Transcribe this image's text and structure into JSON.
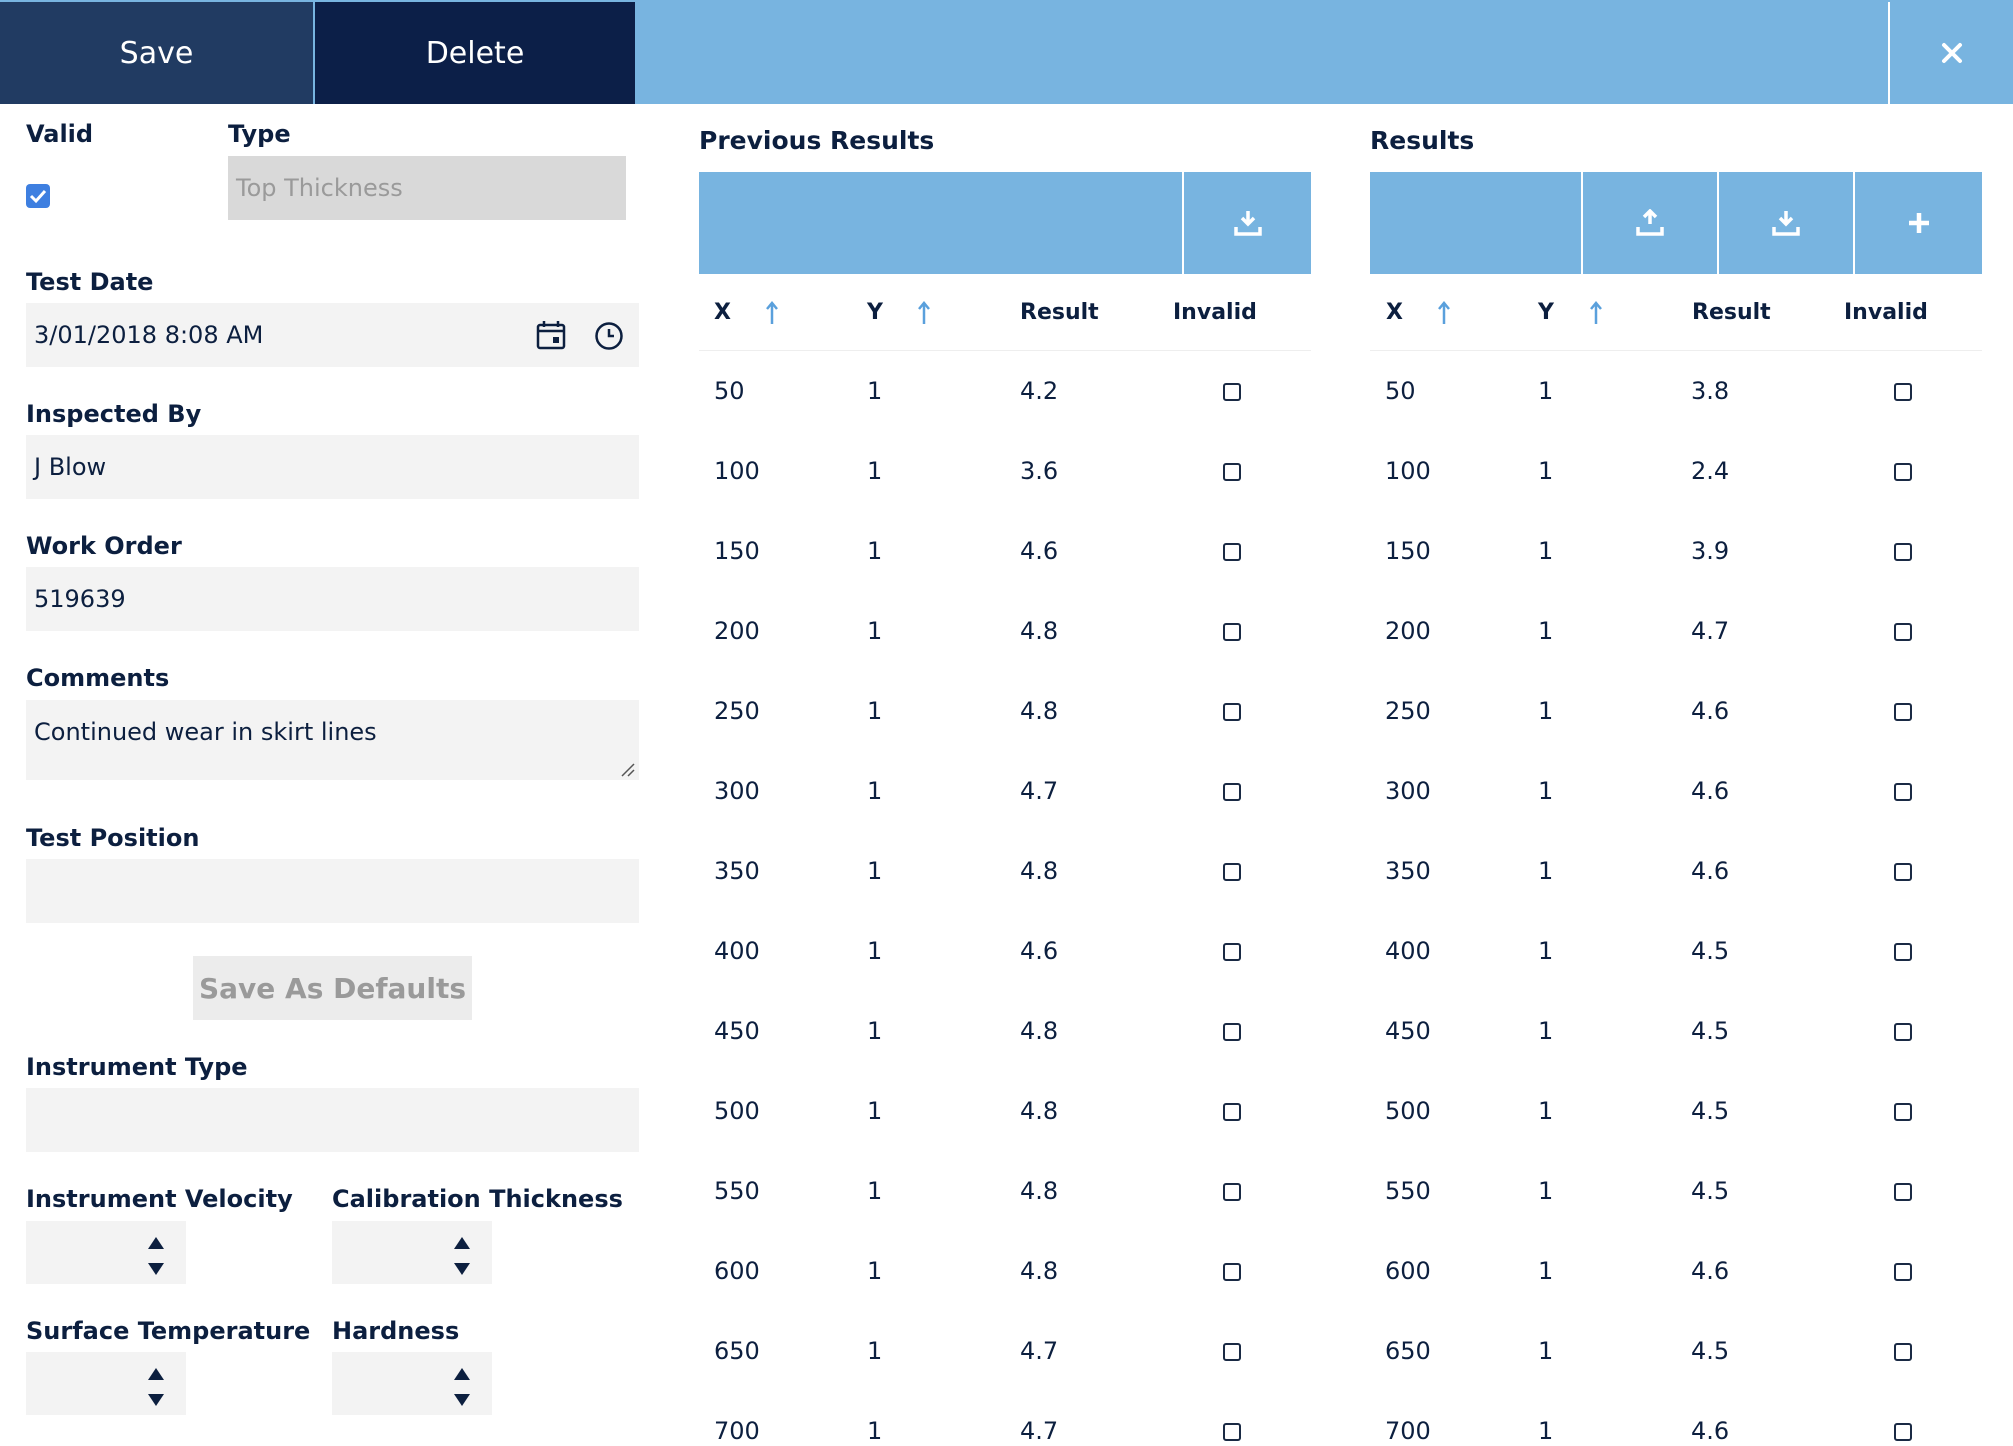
{
  "toolbar": {
    "save_label": "Save",
    "delete_label": "Delete",
    "close_icon": "close-icon"
  },
  "form": {
    "valid_label": "Valid",
    "valid_checked": true,
    "type_label": "Type",
    "type_value": "Top Thickness",
    "test_date_label": "Test Date",
    "test_date_value": "3/01/2018 8:08 AM",
    "inspected_by_label": "Inspected By",
    "inspected_by_value": "J Blow",
    "work_order_label": "Work Order",
    "work_order_value": "519639",
    "comments_label": "Comments",
    "comments_value": "Continued wear in skirt lines",
    "test_position_label": "Test Position",
    "test_position_value": "",
    "save_defaults_label": "Save As Defaults",
    "instrument_type_label": "Instrument Type",
    "instrument_type_value": "",
    "instrument_velocity_label": "Instrument Velocity",
    "calibration_thickness_label": "Calibration Thickness",
    "surface_temperature_label": "Surface Temperature",
    "hardness_label": "Hardness"
  },
  "previous_results": {
    "title": "Previous Results",
    "columns": [
      "X",
      "Y",
      "Result",
      "Invalid"
    ],
    "rows": [
      {
        "x": "50",
        "y": "1",
        "result": "4.2"
      },
      {
        "x": "100",
        "y": "1",
        "result": "3.6"
      },
      {
        "x": "150",
        "y": "1",
        "result": "4.6"
      },
      {
        "x": "200",
        "y": "1",
        "result": "4.8"
      },
      {
        "x": "250",
        "y": "1",
        "result": "4.8"
      },
      {
        "x": "300",
        "y": "1",
        "result": "4.7"
      },
      {
        "x": "350",
        "y": "1",
        "result": "4.8"
      },
      {
        "x": "400",
        "y": "1",
        "result": "4.6"
      },
      {
        "x": "450",
        "y": "1",
        "result": "4.8"
      },
      {
        "x": "500",
        "y": "1",
        "result": "4.8"
      },
      {
        "x": "550",
        "y": "1",
        "result": "4.8"
      },
      {
        "x": "600",
        "y": "1",
        "result": "4.8"
      },
      {
        "x": "650",
        "y": "1",
        "result": "4.7"
      },
      {
        "x": "700",
        "y": "1",
        "result": "4.7"
      }
    ]
  },
  "results": {
    "title": "Results",
    "columns": [
      "X",
      "Y",
      "Result",
      "Invalid"
    ],
    "rows": [
      {
        "x": "50",
        "y": "1",
        "result": "3.8"
      },
      {
        "x": "100",
        "y": "1",
        "result": "2.4"
      },
      {
        "x": "150",
        "y": "1",
        "result": "3.9"
      },
      {
        "x": "200",
        "y": "1",
        "result": "4.7"
      },
      {
        "x": "250",
        "y": "1",
        "result": "4.6"
      },
      {
        "x": "300",
        "y": "1",
        "result": "4.6"
      },
      {
        "x": "350",
        "y": "1",
        "result": "4.6"
      },
      {
        "x": "400",
        "y": "1",
        "result": "4.5"
      },
      {
        "x": "450",
        "y": "1",
        "result": "4.5"
      },
      {
        "x": "500",
        "y": "1",
        "result": "4.5"
      },
      {
        "x": "550",
        "y": "1",
        "result": "4.5"
      },
      {
        "x": "600",
        "y": "1",
        "result": "4.6"
      },
      {
        "x": "650",
        "y": "1",
        "result": "4.5"
      },
      {
        "x": "700",
        "y": "1",
        "result": "4.6"
      }
    ]
  },
  "colors": {
    "toolbar_blue": "#78b4e0",
    "save_bg": "#213b62",
    "delete_bg": "#0c1f48",
    "text": "#0c1f3f",
    "checkbox_blue": "#3e7fe0"
  }
}
